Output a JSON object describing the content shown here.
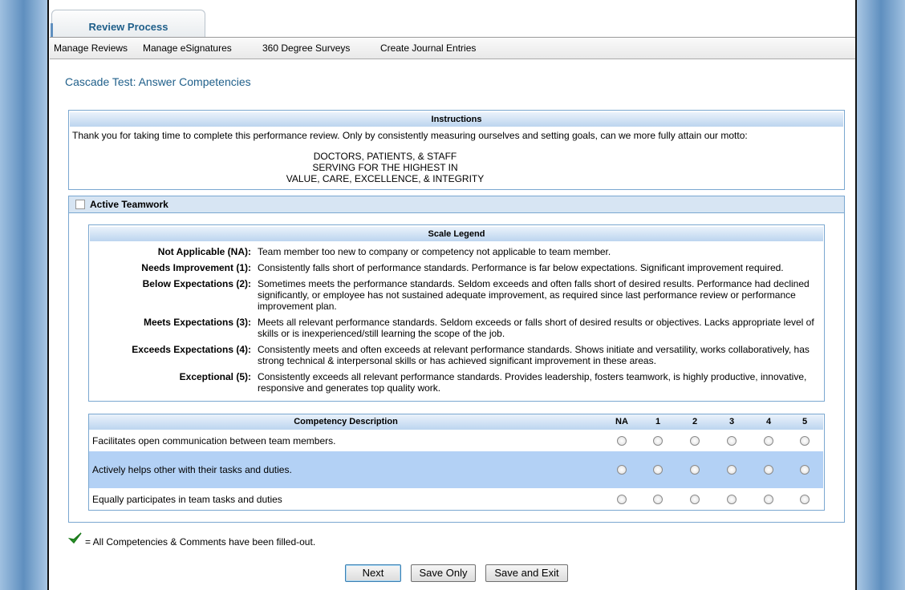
{
  "tabs": [
    "Review Process"
  ],
  "menu": [
    "Manage Reviews",
    "Manage eSignatures",
    "360 Degree Surveys",
    "Create Journal Entries"
  ],
  "page_title": "Cascade Test: Answer Competencies",
  "instructions": {
    "title": "Instructions",
    "text": "Thank you for taking time to complete this performance review.  Only by consistently measuring ourselves and setting goals, can we more fully attain our motto:",
    "motto": [
      "DOCTORS, PATIENTS, & STAFF",
      "SERVING FOR THE HIGHEST IN",
      "VALUE, CARE, EXCELLENCE, & INTEGRITY"
    ]
  },
  "section": {
    "title": "Active Teamwork",
    "legend": {
      "title": "Scale Legend",
      "rows": [
        {
          "term": "Not Applicable (NA):",
          "desc": "Team member too new to company or competency not applicable to team member."
        },
        {
          "term": "Needs Improvement (1):",
          "desc": "Consistently falls short of performance standards. Performance is far below expectations. Significant improvement required."
        },
        {
          "term": "Below Expectations (2):",
          "desc": "Sometimes meets the performance standards. Seldom exceeds and often falls short of desired results. Performance had declined significantly, or employee has not sustained adequate improvement, as required since last performance review or performance improvement plan."
        },
        {
          "term": "Meets Expectations (3):",
          "desc": "Meets all relevant performance standards. Seldom exceeds or falls short of desired results or objectives. Lacks appropriate level of skills or is inexperienced/still learning the scope of the job."
        },
        {
          "term": "Exceeds Expectations (4):",
          "desc": "Consistently meets and often exceeds at relevant performance standards. Shows initiate and versatility, works collaboratively, has strong technical & interpersonal skills or has achieved significant improvement in these areas."
        },
        {
          "term": "Exceptional (5):",
          "desc": "Consistently exceeds all relevant performance standards. Provides leadership, fosters teamwork, is highly productive, innovative, responsive and generates top quality work."
        }
      ]
    },
    "table": {
      "headers": [
        "Competency Description",
        "NA",
        "1",
        "2",
        "3",
        "4",
        "5"
      ],
      "rows": [
        "Facilitates open communication between team members.",
        "Actively helps other with their tasks and duties.",
        "Equally participates in team tasks and duties"
      ]
    }
  },
  "status_note": "= All Competencies & Comments have been filled-out.",
  "buttons": [
    "Next",
    "Save Only",
    "Save and Exit"
  ]
}
